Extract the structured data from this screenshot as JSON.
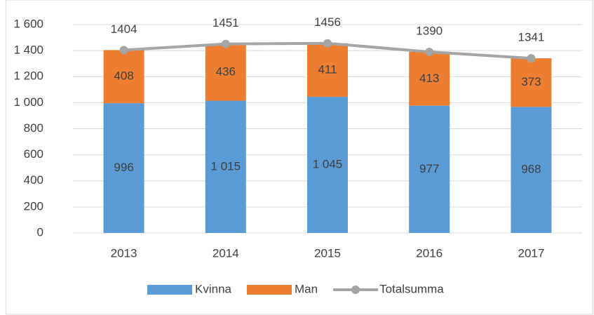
{
  "chart_data": {
    "type": "bar",
    "stacked": true,
    "categories": [
      "2013",
      "2014",
      "2015",
      "2016",
      "2017"
    ],
    "series": [
      {
        "name": "Kvinna",
        "type": "bar",
        "color": "#5b9bd5",
        "values": [
          996,
          1015,
          1045,
          977,
          968
        ],
        "value_labels": [
          "996",
          "1 015",
          "1 045",
          "977",
          "968"
        ]
      },
      {
        "name": "Man",
        "type": "bar",
        "color": "#ed7d31",
        "values": [
          408,
          436,
          411,
          413,
          373
        ]
      },
      {
        "name": "Totalsumma",
        "type": "line",
        "color": "#a5a5a5",
        "values": [
          1404,
          1451,
          1456,
          1390,
          1341
        ]
      }
    ],
    "ylim": [
      0,
      1600
    ],
    "yticks": [
      0,
      200,
      400,
      600,
      800,
      {
        "value": 1000,
        "label": "1 000"
      },
      {
        "value": 1200,
        "label": "1 200"
      },
      {
        "value": 1400,
        "label": "1 400"
      },
      {
        "value": 1600,
        "label": "1 600"
      }
    ],
    "grid": true,
    "legend": "bottom"
  }
}
